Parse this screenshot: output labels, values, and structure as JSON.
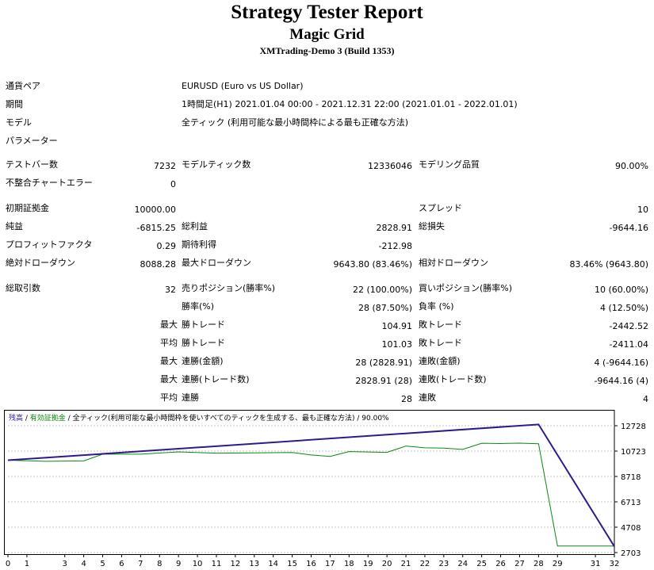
{
  "header": {
    "title": "Strategy Tester Report",
    "subtitle": "Magic Grid",
    "server": "XMTrading-Demo 3 (Build 1353)"
  },
  "info": {
    "symbol_label": "通貨ペア",
    "symbol_value": "EURUSD (Euro vs US Dollar)",
    "period_label": "期間",
    "period_value": "1時間足(H1) 2021.01.04 00:00 - 2021.12.31 22:00 (2021.01.01 - 2022.01.01)",
    "model_label": "モデル",
    "model_value": "全ティック (利用可能な最小時間枠による最も正確な方法)",
    "params_label": "パラメーター"
  },
  "stats": {
    "bars_label": "テストバー数",
    "bars_value": "7232",
    "ticks_label": "モデルティック数",
    "ticks_value": "12336046",
    "quality_label": "モデリング品質",
    "quality_value": "90.00%",
    "mismatch_label": "不整合チャートエラー",
    "mismatch_value": "0",
    "deposit_label": "初期証拠金",
    "deposit_value": "10000.00",
    "spread_label": "スプレッド",
    "spread_value": "10",
    "netprofit_label": "純益",
    "netprofit_value": "-6815.25",
    "grossprofit_label": "総利益",
    "grossprofit_value": "2828.91",
    "grossloss_label": "総損失",
    "grossloss_value": "-9644.16",
    "pf_label": "プロフィットファクタ",
    "pf_value": "0.29",
    "expected_label": "期待利得",
    "expected_value": "-212.98",
    "absdd_label": "絶対ドローダウン",
    "absdd_value": "8088.28",
    "maxdd_label": "最大ドローダウン",
    "maxdd_value": "9643.80 (83.46%)",
    "reldd_label": "相対ドローダウン",
    "reldd_value": "83.46% (9643.80)",
    "total_label": "総取引数",
    "total_value": "32",
    "short_label": "売りポジション(勝率%)",
    "short_value": "22 (100.00%)",
    "long_label": "買いポジション(勝率%)",
    "long_value": "10 (60.00%)",
    "winrate_label": "勝率(%)",
    "winrate_value": "28 (87.50%)",
    "lossrate_label": "負率 (%)",
    "lossrate_value": "4 (12.50%)",
    "max_prefix": "最大",
    "avg_prefix": "平均",
    "largest_win_label": "勝トレード",
    "largest_win_value": "104.91",
    "largest_loss_label": "敗トレード",
    "largest_loss_value": "-2442.52",
    "avg_win_label": "勝トレード",
    "avg_win_value": "101.03",
    "avg_loss_label": "敗トレード",
    "avg_loss_value": "-2411.04",
    "maxconswin_label": "連勝(金額)",
    "maxconswin_value": "28 (2828.91)",
    "maxconsloss_label": "連敗(金額)",
    "maxconsloss_value": "4 (-9644.16)",
    "maxconsprofit_label": "連勝(トレード数)",
    "maxconsprofit_value": "2828.91 (28)",
    "maxconslossamt_label": "連敗(トレード数)",
    "maxconslossamt_value": "-9644.16 (4)",
    "avgconswin_label": "連勝",
    "avgconswin_value": "28",
    "avgconsloss_label": "連敗",
    "avgconsloss_value": "4"
  },
  "legend": {
    "balance": "残高",
    "sep1": " / ",
    "equity": "有効証拠金",
    "sep2": " / ",
    "desc": "全ティック(利用可能な最小時間枠を使いすべてのティックを生成する、最も正確な方法)",
    "sep3": " / ",
    "quality": "90.00%"
  },
  "colors": {
    "balance": "#2d1b8e",
    "equity": "#0a8a0a",
    "grid": "#c8c8c8"
  },
  "chart_data": {
    "type": "line",
    "x_ticks": [
      0,
      1,
      3,
      4,
      5,
      6,
      7,
      8,
      9,
      10,
      11,
      12,
      13,
      14,
      15,
      16,
      17,
      18,
      19,
      20,
      21,
      22,
      23,
      24,
      25,
      26,
      27,
      28,
      29,
      31,
      32
    ],
    "y_ticks": [
      12728,
      10723,
      8718,
      6713,
      4708,
      2703
    ],
    "ylim": [
      2703,
      12728
    ],
    "xlim": [
      0,
      32
    ],
    "series": [
      {
        "name": "残高",
        "x": [
          0,
          28,
          32
        ],
        "y": [
          10000,
          12829,
          3185
        ]
      },
      {
        "name": "有効証拠金",
        "x": [
          0,
          2,
          4,
          5,
          7,
          9,
          11,
          13,
          15,
          16,
          17,
          18,
          20,
          21,
          22,
          23,
          24,
          25,
          26,
          27,
          28,
          29,
          30,
          31,
          32
        ],
        "y": [
          10000,
          9920,
          9950,
          10480,
          10480,
          10660,
          10560,
          10580,
          10610,
          10420,
          10300,
          10680,
          10620,
          11120,
          10980,
          10960,
          10860,
          11340,
          11320,
          11350,
          11300,
          3220,
          3220,
          3220,
          3220
        ]
      }
    ]
  }
}
